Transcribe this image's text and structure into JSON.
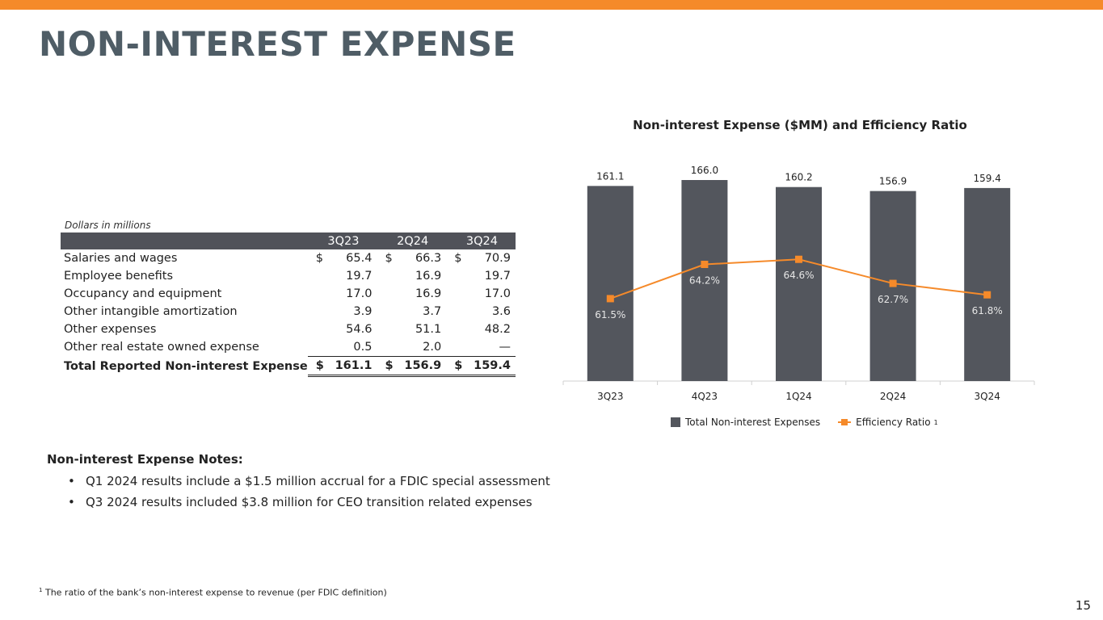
{
  "page": {
    "title": "NON-INTEREST EXPENSE",
    "page_number": "15"
  },
  "colors": {
    "accent": "#f58a2a",
    "bar": "#53565d",
    "title": "#4f5d66"
  },
  "table": {
    "caption": "Dollars in millions",
    "columns": [
      "3Q23",
      "2Q24",
      "3Q24"
    ],
    "rows": [
      {
        "label": "Salaries and wages",
        "dollar": "$",
        "values": [
          "65.4",
          "66.3",
          "70.9"
        ]
      },
      {
        "label": "Employee benefits",
        "dollar": "",
        "values": [
          "19.7",
          "16.9",
          "19.7"
        ]
      },
      {
        "label": "Occupancy and equipment",
        "dollar": "",
        "values": [
          "17.0",
          "16.9",
          "17.0"
        ]
      },
      {
        "label": "Other intangible amortization",
        "dollar": "",
        "values": [
          "3.9",
          "3.7",
          "3.6"
        ]
      },
      {
        "label": "Other expenses",
        "dollar": "",
        "values": [
          "54.6",
          "51.1",
          "48.2"
        ]
      },
      {
        "label": "Other real estate owned expense",
        "dollar": "",
        "values": [
          "0.5",
          "2.0",
          "—"
        ]
      }
    ],
    "total": {
      "label": "Total Reported Non-interest Expense",
      "dollar": "$",
      "values": [
        "161.1",
        "156.9",
        "159.4"
      ]
    }
  },
  "notes": {
    "title": "Non-interest Expense Notes:",
    "items": [
      "Q1 2024 results include a $1.5 million accrual for a FDIC special assessment",
      "Q3 2024 results included $3.8 million for CEO transition related expenses"
    ]
  },
  "footnote": {
    "marker": "1",
    "text": "The ratio of the bank’s non-interest expense to revenue (per FDIC definition)"
  },
  "chart_data": {
    "type": "bar",
    "title": "Non-interest Expense ($MM) and Efficiency Ratio",
    "categories": [
      "3Q23",
      "4Q23",
      "1Q24",
      "2Q24",
      "3Q24"
    ],
    "series": [
      {
        "name": "Total Non-interest Expenses",
        "type": "bar",
        "values": [
          161.1,
          166.0,
          160.2,
          156.9,
          159.4
        ],
        "labels": [
          "161.1",
          "166.0",
          "160.2",
          "156.9",
          "159.4"
        ],
        "color": "#53565d"
      },
      {
        "name": "Efficiency Ratio",
        "legend_suffix": "1",
        "type": "line",
        "values": [
          61.5,
          64.2,
          64.6,
          62.7,
          61.8
        ],
        "labels": [
          "61.5%",
          "64.2%",
          "64.6%",
          "62.7%",
          "61.8%"
        ],
        "color": "#f58a2a"
      }
    ],
    "legend_position": "bottom",
    "grid": false
  }
}
